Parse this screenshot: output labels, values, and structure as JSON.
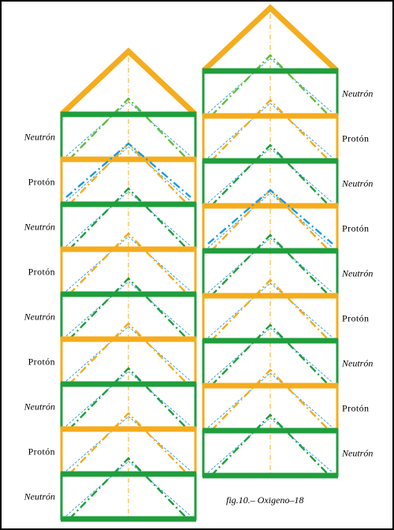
{
  "caption": "fig.10.– Oxigeno–18",
  "colors": {
    "neutron": "#1f9e3c",
    "neutron_dash": "#5fbf3a",
    "proton": "#f5ac1d",
    "connector": "#1a9be0",
    "guide": "#2a9ad8",
    "border": "#000000"
  },
  "left_column": {
    "roof": {
      "color": "proton"
    },
    "layers": [
      {
        "kind": "neutron",
        "label": "Neutrón"
      },
      {
        "kind": "proton",
        "label": "Protón"
      },
      {
        "kind": "neutron",
        "label": "Neutrón"
      },
      {
        "kind": "proton",
        "label": "Protón"
      },
      {
        "kind": "neutron",
        "label": "Neutrón"
      },
      {
        "kind": "proton",
        "label": "Protón"
      },
      {
        "kind": "neutron",
        "label": "Neutrón"
      },
      {
        "kind": "proton",
        "label": "Protón"
      },
      {
        "kind": "neutron",
        "label": "Neutrón"
      }
    ]
  },
  "right_column": {
    "roof": {
      "color": "proton"
    },
    "layers": [
      {
        "kind": "neutron",
        "label": "Neutrón"
      },
      {
        "kind": "proton",
        "label": "Protón"
      },
      {
        "kind": "neutron",
        "label": "Neutrón"
      },
      {
        "kind": "proton",
        "label": "Protón"
      },
      {
        "kind": "neutron",
        "label": "Neutrón"
      },
      {
        "kind": "proton",
        "label": "Protón"
      },
      {
        "kind": "neutron",
        "label": "Neutrón"
      },
      {
        "kind": "proton",
        "label": "Protón"
      },
      {
        "kind": "neutron",
        "label": "Neutrón"
      }
    ]
  }
}
